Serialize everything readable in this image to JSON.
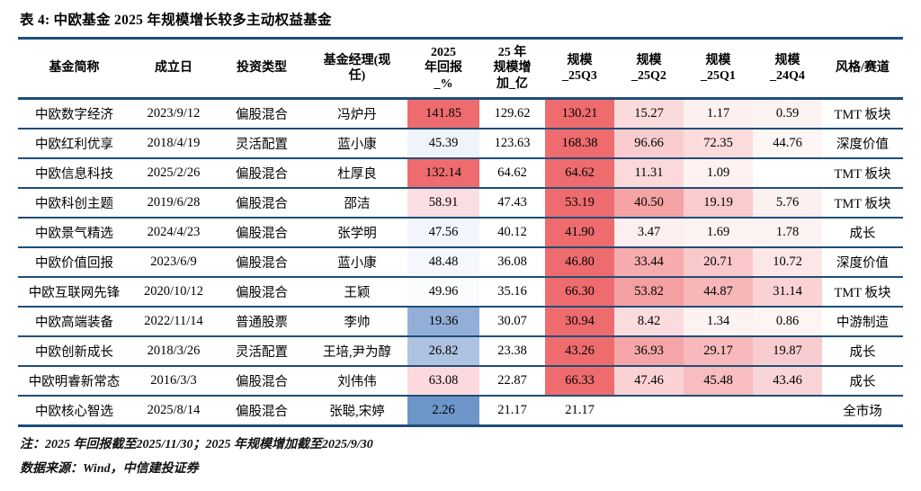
{
  "title": "表 4: 中欧基金 2025 年规模增长较多主动权益基金",
  "notes": [
    "注：2025 年回报截至2025/11/30；2025 年规模增加截至2025/9/30",
    "数据来源：Wind，中信建投证券"
  ],
  "colors": {
    "border_navy": "#1F4E79",
    "heat_red_max": "#EE6C6E",
    "heat_blue_low": "#6D96C8",
    "text": "#000000"
  },
  "chart_data": {
    "type": "table",
    "title": "表 4: 中欧基金 2025 年规模增长较多主动权益基金",
    "columns": [
      "基金简称",
      "成立日",
      "投资类型",
      "基金经理(现\n任)",
      "2025\n年回报\n_%",
      "25 年\n规模增\n加_亿",
      "规模\n_25Q3",
      "规模\n_25Q2",
      "规模\n_25Q1",
      "规模\n_24Q4",
      "风格/赛道"
    ],
    "rows": [
      {
        "cells": {
          "name": "中欧数字经济",
          "date": "2023/9/12",
          "type": "偏股混合",
          "manager": "冯炉丹",
          "ret": "141.85",
          "inc": "129.62",
          "q3": "130.21",
          "q2": "15.27",
          "q1": "1.17",
          "q4": "0.59",
          "style": "TMT 板块"
        },
        "bg": {
          "ret": "#EE6C6E",
          "q3": "#EE6C6E",
          "q2": "#FBDADB",
          "q1": "#FDF0F0",
          "q4": "#FDF3F3"
        }
      },
      {
        "cells": {
          "name": "中欧红利优享",
          "date": "2018/4/19",
          "type": "灵活配置",
          "manager": "蓝小康",
          "ret": "45.39",
          "inc": "123.63",
          "q3": "168.38",
          "q2": "96.66",
          "q1": "72.35",
          "q4": "44.76",
          "style": "深度价值"
        },
        "bg": {
          "ret": "#EFF3FA",
          "q3": "#EE6C6E",
          "q2": "#F9CDCF",
          "q1": "#FBDBDB",
          "q4": "#FEF5F5"
        }
      },
      {
        "cells": {
          "name": "中欧信息科技",
          "date": "2025/2/26",
          "type": "偏股混合",
          "manager": "杜厚良",
          "ret": "132.14",
          "inc": "64.62",
          "q3": "64.62",
          "q2": "11.31",
          "q1": "1.09",
          "q4": "",
          "style": "TMT 板块"
        },
        "bg": {
          "ret": "#EE6C6E",
          "q3": "#EE6C6E",
          "q2": "#FBD9DA",
          "q1": "#FDF1F1"
        }
      },
      {
        "cells": {
          "name": "中欧科创主题",
          "date": "2019/6/28",
          "type": "偏股混合",
          "manager": "邵洁",
          "ret": "58.91",
          "inc": "47.43",
          "q3": "53.19",
          "q2": "40.50",
          "q1": "19.19",
          "q4": "5.76",
          "style": "TMT 板块"
        },
        "bg": {
          "ret": "#FBDEE1",
          "q3": "#EE6C6E",
          "q2": "#F5A3A5",
          "q1": "#F9CBCD",
          "q4": "#FDF0F0"
        }
      },
      {
        "cells": {
          "name": "中欧景气精选",
          "date": "2024/4/23",
          "type": "偏股混合",
          "manager": "张学明",
          "ret": "47.56",
          "inc": "40.12",
          "q3": "41.90",
          "q2": "3.47",
          "q1": "1.69",
          "q4": "1.78",
          "style": "成长"
        },
        "bg": {
          "ret": "#F2F5FB",
          "q3": "#EE6C6E",
          "q2": "#FDEFEF",
          "q1": "#FDF3F3",
          "q4": "#FDF2F2"
        }
      },
      {
        "cells": {
          "name": "中欧价值回报",
          "date": "2023/6/9",
          "type": "偏股混合",
          "manager": "蓝小康",
          "ret": "48.48",
          "inc": "36.08",
          "q3": "46.80",
          "q2": "33.44",
          "q1": "20.71",
          "q4": "10.72",
          "style": "深度价值"
        },
        "bg": {
          "ret": "#F5F7FC",
          "q3": "#EE6C6E",
          "q2": "#F6ACAE",
          "q1": "#F9C8CA",
          "q4": "#FCE6E6"
        }
      },
      {
        "cells": {
          "name": "中欧互联网先锋",
          "date": "2020/10/12",
          "type": "偏股混合",
          "manager": "王颖",
          "ret": "49.96",
          "inc": "35.16",
          "q3": "66.30",
          "q2": "53.82",
          "q1": "44.87",
          "q4": "31.14",
          "style": "TMT 板块"
        },
        "bg": {
          "ret": "#FAFBFD",
          "q3": "#EE6C6E",
          "q2": "#F4A0A2",
          "q1": "#F7B6B8",
          "q4": "#FAD2D4"
        }
      },
      {
        "cells": {
          "name": "中欧高端装备",
          "date": "2022/11/14",
          "type": "普通股票",
          "manager": "李帅",
          "ret": "19.36",
          "inc": "30.07",
          "q3": "30.94",
          "q2": "8.42",
          "q1": "1.34",
          "q4": "0.86",
          "style": "中游制造"
        },
        "bg": {
          "ret": "#93AFD7",
          "q3": "#EE6C6E",
          "q2": "#FBDCDE",
          "q1": "#FDF2F2",
          "q4": "#FDF4F4"
        }
      },
      {
        "cells": {
          "name": "中欧创新成长",
          "date": "2018/3/26",
          "type": "灵活配置",
          "manager": "王培,尹为醇",
          "ret": "26.82",
          "inc": "23.38",
          "q3": "43.26",
          "q2": "36.93",
          "q1": "29.17",
          "q4": "19.87",
          "style": "成长"
        },
        "bg": {
          "ret": "#AEC2E1",
          "q3": "#EE6C6E",
          "q2": "#F5A5A7",
          "q1": "#F7B9BB",
          "q4": "#F9CDCF"
        }
      },
      {
        "cells": {
          "name": "中欧明睿新常态",
          "date": "2016/3/3",
          "type": "偏股混合",
          "manager": "刘伟伟",
          "ret": "63.08",
          "inc": "22.87",
          "q3": "66.33",
          "q2": "47.46",
          "q1": "45.48",
          "q4": "43.46",
          "style": "成长"
        },
        "bg": {
          "ret": "#FBD9DC",
          "q3": "#EE6C6E",
          "q2": "#FAD2D4",
          "q1": "#F7BDBF",
          "q4": "#FAD5D7"
        }
      },
      {
        "cells": {
          "name": "中欧核心智选",
          "date": "2025/8/14",
          "type": "偏股混合",
          "manager": "张聪,宋婷",
          "ret": "2.26",
          "inc": "21.17",
          "q3": "21.17",
          "q2": "",
          "q1": "",
          "q4": "",
          "style": "全市场"
        },
        "bg": {
          "ret": "#6D96C8"
        }
      }
    ]
  }
}
